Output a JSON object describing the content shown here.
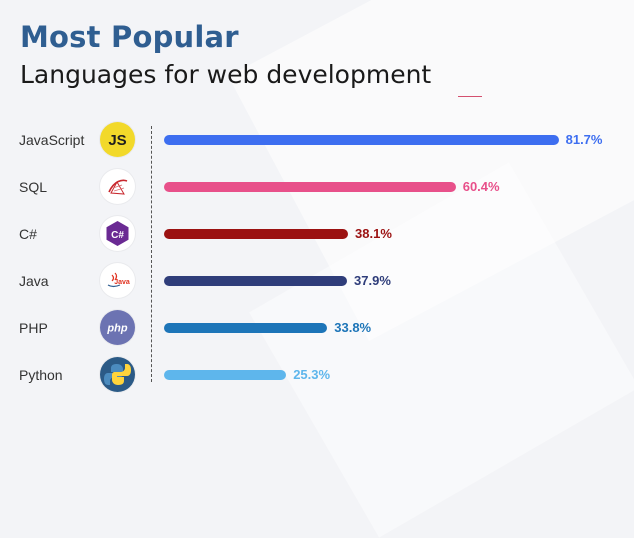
{
  "title": "Most Popular",
  "subtitle": "Languages for web development",
  "chart_data": {
    "type": "bar",
    "orientation": "horizontal",
    "title": "Most Popular",
    "subtitle": "Languages for web development",
    "categories": [
      "JavaScript",
      "SQL",
      "C#",
      "Java",
      "PHP",
      "Python"
    ],
    "values": [
      81.7,
      60.4,
      38.1,
      37.9,
      33.8,
      25.3
    ],
    "value_labels": [
      "81.7%",
      "60.4%",
      "38.1%",
      "37.9%",
      "33.8%",
      "25.3%"
    ],
    "unit": "%",
    "xlim": [
      0,
      100
    ],
    "grid": false,
    "legend": "none",
    "colors": [
      "#3d6ef0",
      "#e8508a",
      "#9b1111",
      "#2f3d7a",
      "#1d75b8",
      "#5eb6ec"
    ],
    "value_colors": [
      "#3d6ef0",
      "#e8508a",
      "#9b1111",
      "#2f3d7a",
      "#1d75b8",
      "#5eb6ec"
    ],
    "icons": [
      "javascript-icon",
      "sql-icon",
      "csharp-icon",
      "java-icon",
      "php-icon",
      "python-icon"
    ],
    "icon_texts": [
      "JS",
      "",
      "C#",
      "Java",
      "php",
      ""
    ]
  },
  "colors": {
    "title": "#2f5e91",
    "accent": "#d4506f",
    "background": "#f3f4f7"
  }
}
